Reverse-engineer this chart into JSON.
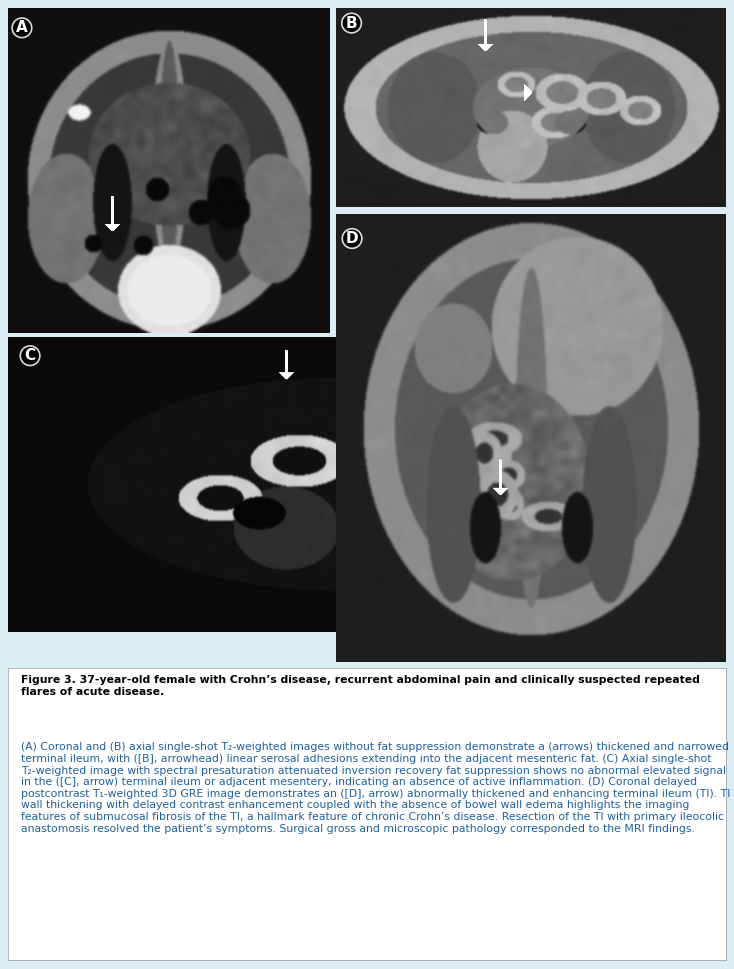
{
  "figure_title_bold": "Figure 3. 37-year-old female with Crohn’s disease, recurrent abdominal pain and clinically suspected repeated flares of acute disease.",
  "caption_parts": [
    {
      "text": "(A)",
      "bold": true
    },
    {
      "text": " Coronal and ",
      "bold": false
    },
    {
      "text": "(B)",
      "bold": true
    },
    {
      "text": " axial single-shot T",
      "bold": false
    },
    {
      "text": "2",
      "bold": false,
      "sub": true
    },
    {
      "text": "-weighted images without fat suppression demonstrate a (arrows) thickened and narrowed terminal ileum, with ([",
      "bold": false
    },
    {
      "text": "B",
      "bold": true
    },
    {
      "text": "], arrowhead) linear serosal adhesions extending into the adjacent mesenteric fat. ",
      "bold": false
    },
    {
      "text": "(C)",
      "bold": true
    },
    {
      "text": " Axial single-shot T",
      "bold": false
    },
    {
      "text": "2",
      "bold": false,
      "sub": true
    },
    {
      "text": "-weighted image with spectral presaturation attenuated inversion recovery fat suppression shows no abnormal elevated signal in the ([",
      "bold": false
    },
    {
      "text": "C",
      "bold": true
    },
    {
      "text": "], arrow) terminal ileum or adjacent mesentery, indicating an absence of active inflammation. ",
      "bold": false
    },
    {
      "text": "(D)",
      "bold": true
    },
    {
      "text": " Coronal delayed postcontrast T",
      "bold": false
    },
    {
      "text": "1",
      "bold": false,
      "sub": true
    },
    {
      "text": "-weighted 3D GRE image demonstrates an ([",
      "bold": false
    },
    {
      "text": "D",
      "bold": true
    },
    {
      "text": "], arrow) abnormally thickened and enhancing terminal ileum (TI). TI wall thickening with delayed contrast enhancement coupled with the absence of bowel wall edema highlights the imaging features of submucosal fibrosis of the TI, a hallmark feature of chronic Crohn’s disease. Resection of the TI with primary ileocolic anastomosis resolved the patient’s symptoms. Surgical gross and microscopic pathology corresponded to the MRI findings.",
      "bold": false
    }
  ],
  "bg_color": "#daeef3",
  "white": "#ffffff",
  "black": "#000000",
  "blue_text": "#2060a0",
  "fig_width": 7.34,
  "fig_height": 9.69,
  "dpi": 100
}
